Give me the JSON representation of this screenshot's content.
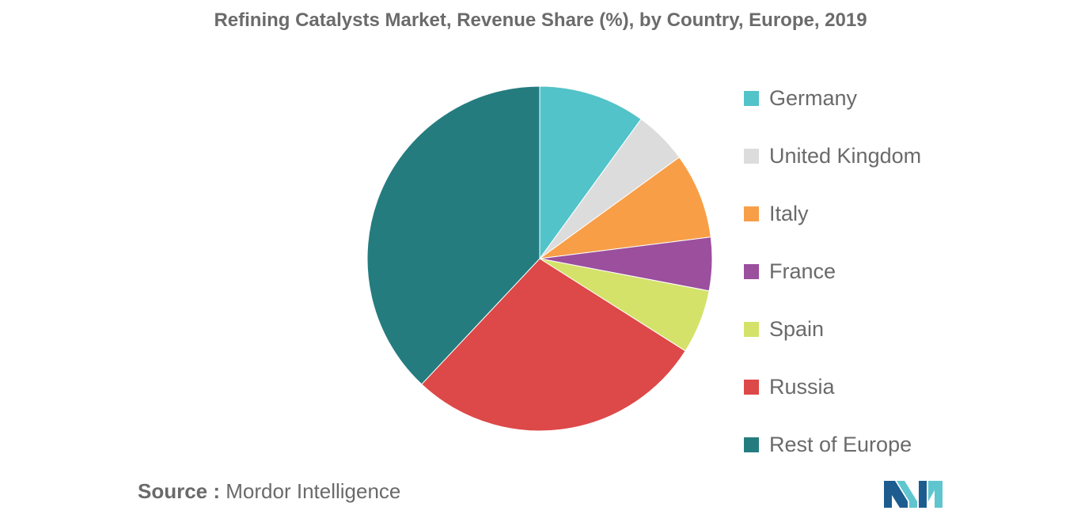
{
  "chart_data": {
    "type": "pie",
    "title": "Refining Catalysts Market, Revenue Share (%), by Country, Europe, 2019",
    "legend_position": "right",
    "slices": [
      {
        "name": "Germany",
        "value": 10,
        "color": "#52c3c9"
      },
      {
        "name": "United Kingdom",
        "value": 5,
        "color": "#dcdcdc"
      },
      {
        "name": "Italy",
        "value": 8,
        "color": "#f89e47"
      },
      {
        "name": "France",
        "value": 5,
        "color": "#9b4f9d"
      },
      {
        "name": "Spain",
        "value": 6,
        "color": "#d4e26a"
      },
      {
        "name": "Russia",
        "value": 28,
        "color": "#dd4848"
      },
      {
        "name": "Rest of Europe",
        "value": 38,
        "color": "#257c7f"
      }
    ]
  },
  "source": {
    "label": "Source :",
    "text": "Mordor Intelligence"
  },
  "logo": {
    "icon": "mordor-intelligence-logo",
    "colors": [
      "#1d5c8f",
      "#5fc6cf"
    ]
  }
}
